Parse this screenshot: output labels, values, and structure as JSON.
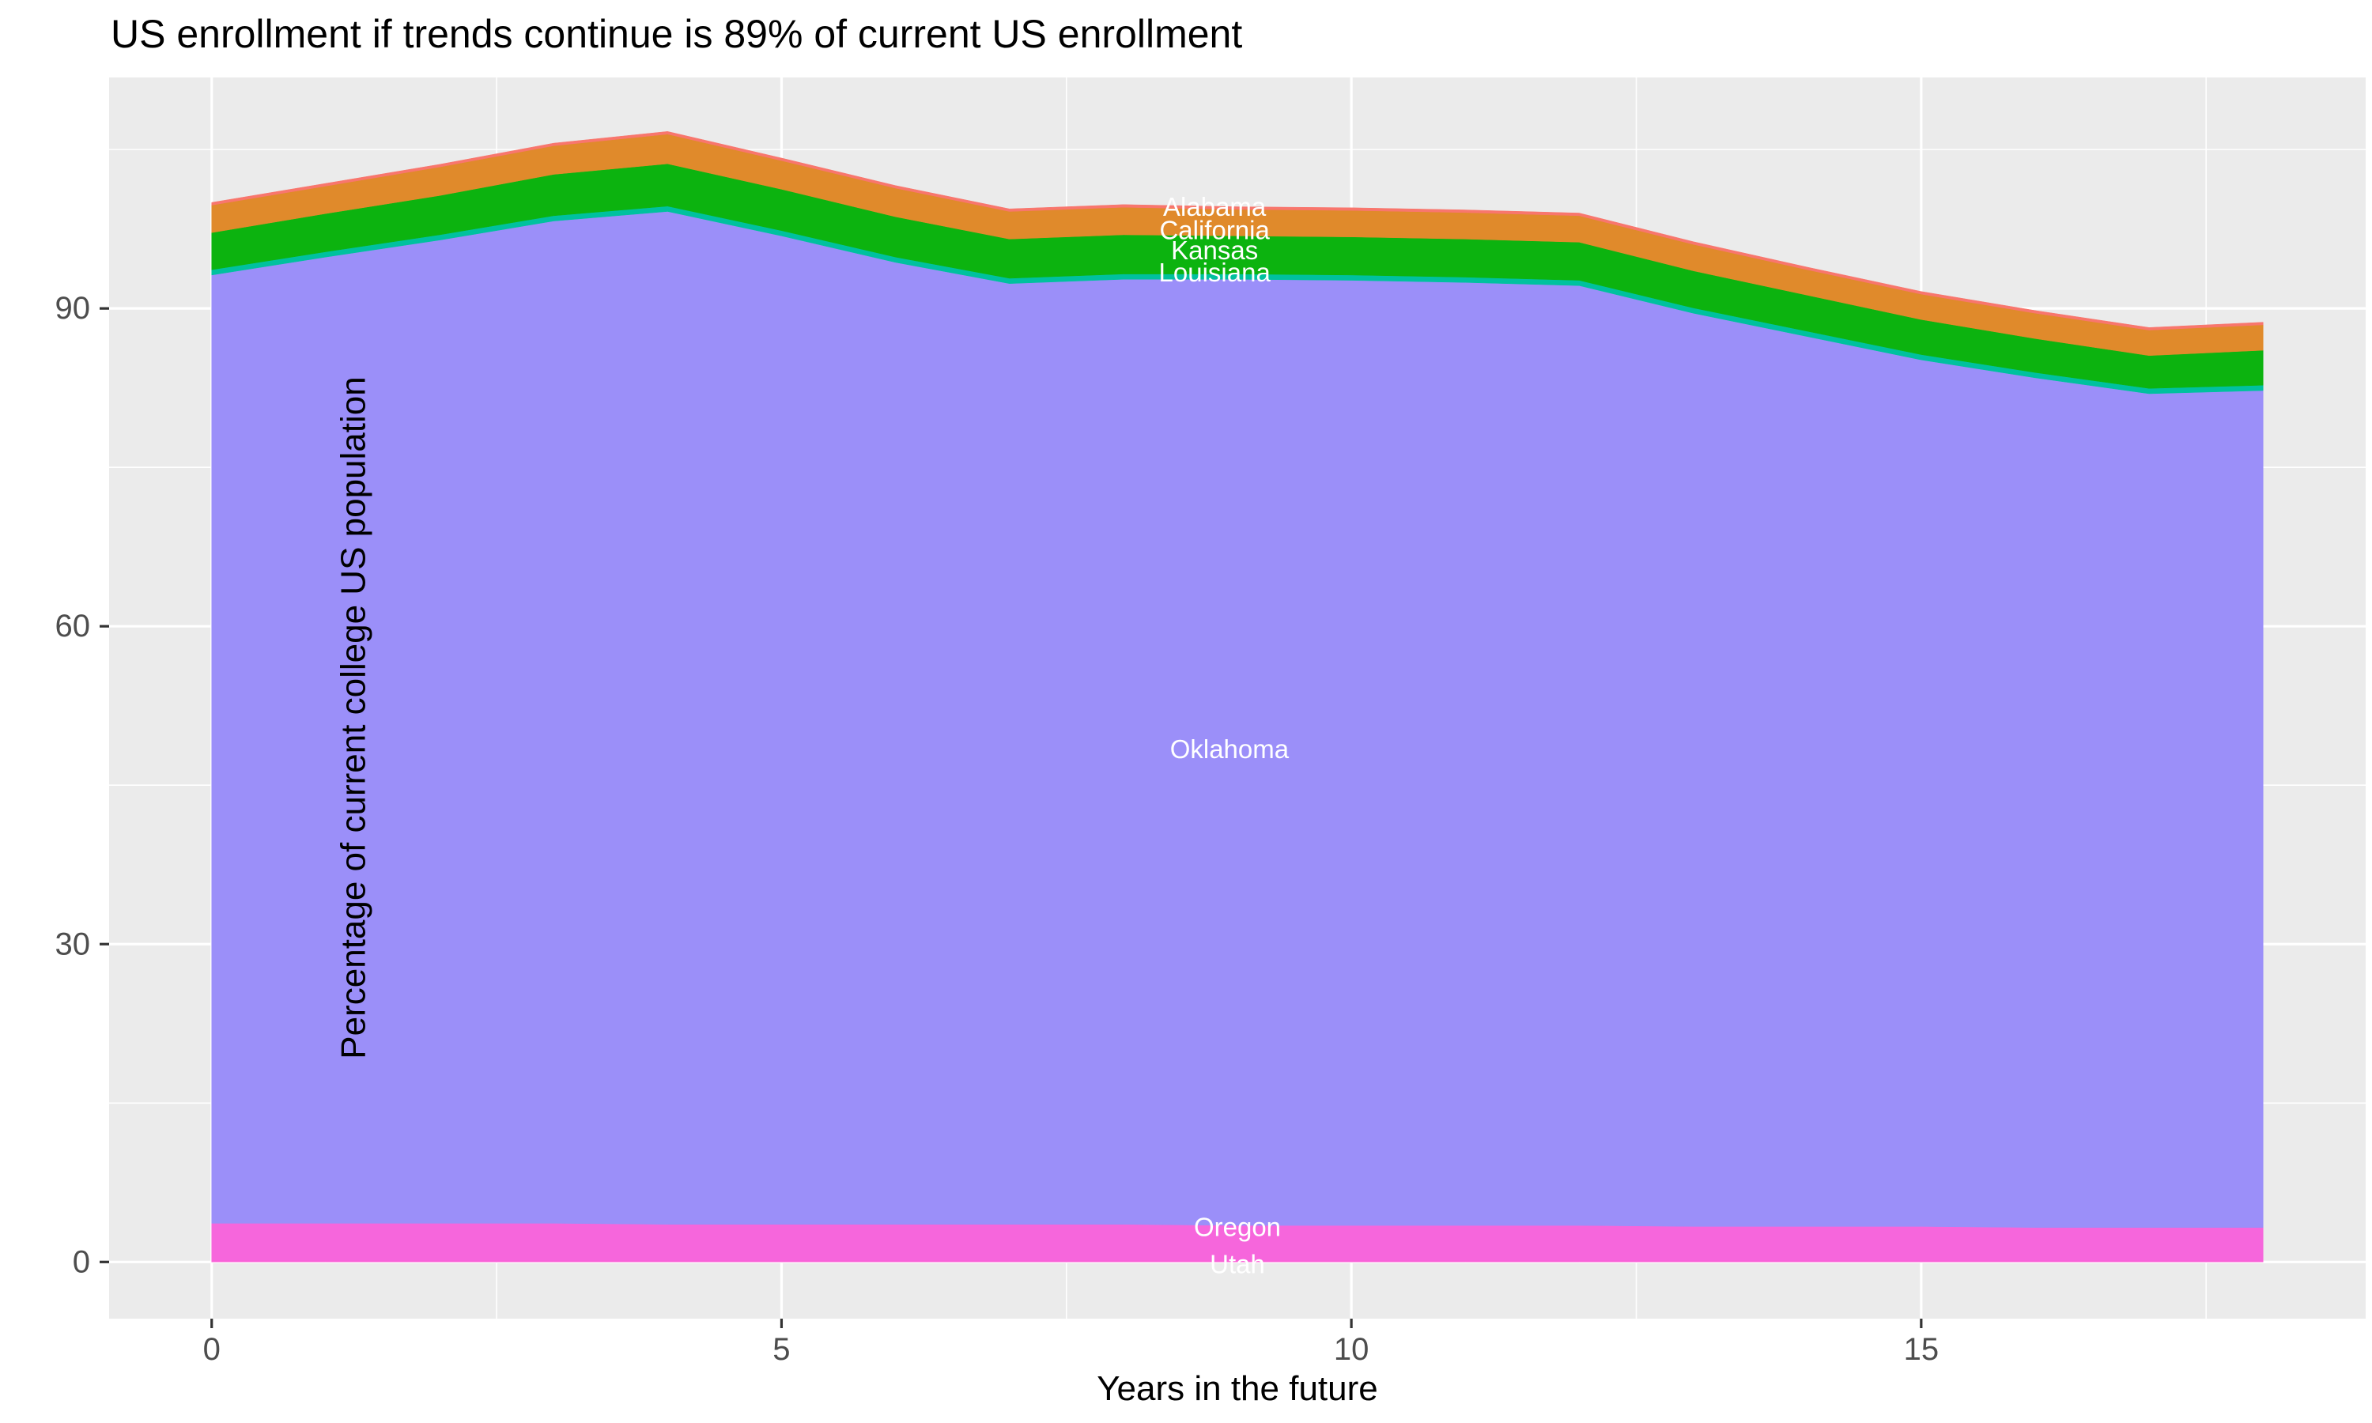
{
  "title": "US enrollment if trends continue is 89% of current US enrollment",
  "chart_data": {
    "type": "area",
    "stacked": true,
    "title": "US enrollment if trends continue is 89% of current US enrollment",
    "xlabel": "Years in the future",
    "ylabel": "Percentage of current college US population",
    "x": [
      0,
      1,
      2,
      3,
      4,
      5,
      6,
      7,
      8,
      9,
      10,
      11,
      12,
      13,
      14,
      15,
      16,
      17,
      18
    ],
    "xlim": [
      -0.9,
      18.9
    ],
    "ylim": [
      -5.35,
      111.8
    ],
    "x_ticks": [
      0,
      5,
      10,
      15
    ],
    "x_tick_labels": [
      "0",
      "5",
      "10",
      "15"
    ],
    "y_ticks": [
      0,
      30,
      60,
      90
    ],
    "y_tick_labels": [
      "0",
      "30",
      "60",
      "90"
    ],
    "x_minor_ticks": [
      2.5,
      7.5,
      12.5,
      17.5
    ],
    "y_minor_ticks": [
      15,
      45,
      75,
      105
    ],
    "grid": true,
    "legend": "none",
    "stack_order_top_to_bottom": [
      "Alabama",
      "California",
      "Kansas",
      "Louisiana",
      "Oklahoma",
      "Oregon",
      "Utah"
    ],
    "series": [
      {
        "name": "Alabama",
        "color": "#F8766D",
        "values": [
          0.25,
          0.25,
          0.25,
          0.25,
          0.25,
          0.25,
          0.25,
          0.25,
          0.25,
          0.25,
          0.25,
          0.25,
          0.25,
          0.25,
          0.25,
          0.25,
          0.25,
          0.25,
          0.25
        ],
        "label": {
          "text": "Alabama",
          "x": 8.8,
          "y": 99.6
        }
      },
      {
        "name": "California",
        "color": "#E08A2B",
        "values": [
          2.6,
          2.6,
          2.7,
          2.7,
          2.8,
          2.7,
          2.7,
          2.6,
          2.6,
          2.5,
          2.5,
          2.5,
          2.5,
          2.5,
          2.4,
          2.4,
          2.4,
          2.4,
          2.4
        ],
        "label": {
          "text": "California",
          "x": 8.8,
          "y": 97.4
        }
      },
      {
        "name": "Kansas",
        "color": "#0CB30F",
        "values": [
          3.5,
          3.6,
          3.7,
          3.9,
          4.0,
          3.9,
          3.8,
          3.7,
          3.7,
          3.6,
          3.6,
          3.6,
          3.6,
          3.5,
          3.4,
          3.3,
          3.2,
          3.1,
          3.3
        ],
        "label": {
          "text": "Kansas",
          "x": 8.8,
          "y": 95.5
        }
      },
      {
        "name": "Louisiana",
        "color": "#00C19F",
        "values": [
          0.5,
          0.5,
          0.5,
          0.5,
          0.5,
          0.5,
          0.5,
          0.5,
          0.5,
          0.5,
          0.5,
          0.5,
          0.5,
          0.5,
          0.5,
          0.5,
          0.5,
          0.5,
          0.5
        ],
        "label": {
          "text": "Louisiana",
          "x": 8.8,
          "y": 93.4
        }
      },
      {
        "name": "Oklahoma",
        "color": "#9B8FF9",
        "values": [
          89.5,
          91.2,
          92.8,
          94.6,
          95.6,
          93.3,
          90.8,
          88.8,
          89.2,
          89.3,
          89.2,
          89.0,
          88.7,
          86.2,
          84.0,
          81.8,
          80.2,
          78.7,
          79.0
        ],
        "label": {
          "text": "Oklahoma",
          "x": 8.93,
          "y": 48.4
        }
      },
      {
        "name": "Oregon",
        "color": "#F666DC",
        "values": [
          3.5,
          3.5,
          3.5,
          3.5,
          3.4,
          3.4,
          3.4,
          3.4,
          3.4,
          3.3,
          3.3,
          3.3,
          3.3,
          3.2,
          3.2,
          3.2,
          3.1,
          3.1,
          3.1
        ],
        "label": {
          "text": "Oregon",
          "x": 9.0,
          "y": 3.3
        }
      },
      {
        "name": "Utah",
        "color": "#FB61D7",
        "values": [
          0.15,
          0.15,
          0.15,
          0.15,
          0.15,
          0.15,
          0.15,
          0.15,
          0.15,
          0.15,
          0.15,
          0.15,
          0.15,
          0.15,
          0.15,
          0.15,
          0.15,
          0.15,
          0.15
        ],
        "label": {
          "text": "Utah",
          "x": 9.0,
          "y": -0.2
        }
      }
    ],
    "total_at_start_pct": 100,
    "total_at_end_pct": 89,
    "colors": {
      "panel_bg": "#EBEBEB",
      "grid": "#FFFFFF",
      "tick_mark": "#333333",
      "tick_label": "#4D4D4D",
      "title": "#000000",
      "axis_title": "#000000",
      "area_label": "#FFFFFF"
    }
  }
}
